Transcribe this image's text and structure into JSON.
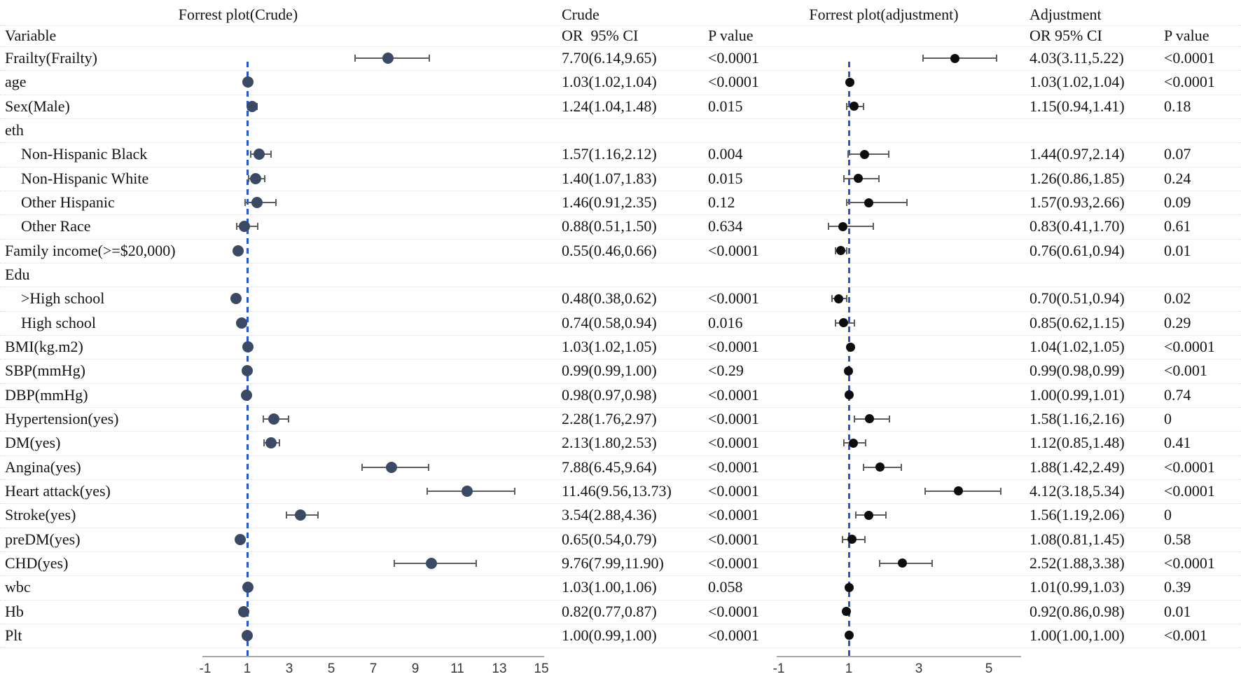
{
  "figure": {
    "left_plot_title": "Forrest plot(Crude)",
    "right_plot_title": "Forrest plot(adjustment)",
    "crude_group_label": "Crude",
    "adjust_group_label": "Adjustment",
    "variable_header": "Variable",
    "crude_or_header": "OR  95% CI",
    "crude_p_header": "P value",
    "adjust_or_header": "OR 95% CI",
    "adjust_p_header": "P value"
  },
  "colors": {
    "crude_marker": "#3b4a64",
    "adjust_marker": "#0d0d0d",
    "ci_line": "#5d5d5d",
    "reference_line": "#2456cf",
    "gridline": "#dcdcdc",
    "axis_line": "#a8a8a8",
    "text": "#141414"
  },
  "chart_data": {
    "type": "forest",
    "left_axis": {
      "ticks": [
        -1,
        1,
        3,
        5,
        7,
        9,
        11,
        13,
        15
      ],
      "reference_value": 1
    },
    "right_axis": {
      "ticks": [
        -1,
        1,
        3,
        5
      ],
      "reference_value": 1
    },
    "rows": [
      {
        "label": "Frailty(Frailty)",
        "indent": false,
        "crude": {
          "or": 7.7,
          "lo": 6.14,
          "hi": 9.65,
          "text": "7.70(6.14,9.65)",
          "p": "<0.0001"
        },
        "adj": {
          "or": 4.03,
          "lo": 3.11,
          "hi": 5.22,
          "text": "4.03(3.11,5.22)",
          "p": "<0.0001"
        }
      },
      {
        "label": "age",
        "indent": false,
        "crude": {
          "or": 1.03,
          "lo": 1.02,
          "hi": 1.04,
          "text": "1.03(1.02,1.04)",
          "p": "<0.0001"
        },
        "adj": {
          "or": 1.03,
          "lo": 1.02,
          "hi": 1.04,
          "text": "1.03(1.02,1.04)",
          "p": "<0.0001"
        }
      },
      {
        "label": "Sex(Male)",
        "indent": false,
        "crude": {
          "or": 1.24,
          "lo": 1.04,
          "hi": 1.48,
          "text": "1.24(1.04,1.48)",
          "p": "0.015"
        },
        "adj": {
          "or": 1.15,
          "lo": 0.94,
          "hi": 1.41,
          "text": "1.15(0.94,1.41)",
          "p": "0.18"
        }
      },
      {
        "label": "eth",
        "indent": false,
        "crude": null,
        "adj": null
      },
      {
        "label": "Non-Hispanic Black",
        "indent": true,
        "crude": {
          "or": 1.57,
          "lo": 1.16,
          "hi": 2.12,
          "text": "1.57(1.16,2.12)",
          "p": "0.004"
        },
        "adj": {
          "or": 1.44,
          "lo": 0.97,
          "hi": 2.14,
          "text": "1.44(0.97,2.14)",
          "p": "0.07"
        }
      },
      {
        "label": "Non-Hispanic White",
        "indent": true,
        "crude": {
          "or": 1.4,
          "lo": 1.07,
          "hi": 1.83,
          "text": "1.40(1.07,1.83)",
          "p": "0.015"
        },
        "adj": {
          "or": 1.26,
          "lo": 0.86,
          "hi": 1.85,
          "text": "1.26(0.86,1.85)",
          "p": "0.24"
        }
      },
      {
        "label": "Other Hispanic",
        "indent": true,
        "crude": {
          "or": 1.46,
          "lo": 0.91,
          "hi": 2.35,
          "text": "1.46(0.91,2.35)",
          "p": "0.12"
        },
        "adj": {
          "or": 1.57,
          "lo": 0.93,
          "hi": 2.66,
          "text": "1.57(0.93,2.66)",
          "p": "0.09"
        }
      },
      {
        "label": "Other Race",
        "indent": true,
        "crude": {
          "or": 0.88,
          "lo": 0.51,
          "hi": 1.5,
          "text": "0.88(0.51,1.50)",
          "p": "0.634"
        },
        "adj": {
          "or": 0.83,
          "lo": 0.41,
          "hi": 1.7,
          "text": "0.83(0.41,1.70)",
          "p": "0.61"
        }
      },
      {
        "label": "Family income(>=$20,000)",
        "indent": false,
        "crude": {
          "or": 0.55,
          "lo": 0.46,
          "hi": 0.66,
          "text": "0.55(0.46,0.66)",
          "p": "<0.0001"
        },
        "adj": {
          "or": 0.76,
          "lo": 0.61,
          "hi": 0.94,
          "text": "0.76(0.61,0.94)",
          "p": "0.01"
        }
      },
      {
        "label": "Edu",
        "indent": false,
        "crude": null,
        "adj": null
      },
      {
        "label": ">High school",
        "indent": true,
        "crude": {
          "or": 0.48,
          "lo": 0.38,
          "hi": 0.62,
          "text": "0.48(0.38,0.62)",
          "p": "<0.0001"
        },
        "adj": {
          "or": 0.7,
          "lo": 0.51,
          "hi": 0.94,
          "text": "0.70(0.51,0.94)",
          "p": "0.02"
        }
      },
      {
        "label": "High school",
        "indent": true,
        "crude": {
          "or": 0.74,
          "lo": 0.58,
          "hi": 0.94,
          "text": "0.74(0.58,0.94)",
          "p": "0.016"
        },
        "adj": {
          "or": 0.85,
          "lo": 0.62,
          "hi": 1.15,
          "text": "0.85(0.62,1.15)",
          "p": "0.29"
        }
      },
      {
        "label": "BMI(kg.m2)",
        "indent": false,
        "crude": {
          "or": 1.03,
          "lo": 1.02,
          "hi": 1.05,
          "text": "1.03(1.02,1.05)",
          "p": "<0.0001"
        },
        "adj": {
          "or": 1.04,
          "lo": 1.02,
          "hi": 1.05,
          "text": "1.04(1.02,1.05)",
          "p": "<0.0001"
        }
      },
      {
        "label": "SBP(mmHg)",
        "indent": false,
        "crude": {
          "or": 0.99,
          "lo": 0.99,
          "hi": 1.0,
          "text": "0.99(0.99,1.00)",
          "p": "<0.29"
        },
        "adj": {
          "or": 0.99,
          "lo": 0.98,
          "hi": 0.99,
          "text": "0.99(0.98,0.99)",
          "p": "<0.001"
        }
      },
      {
        "label": "DBP(mmHg)",
        "indent": false,
        "crude": {
          "or": 0.98,
          "lo": 0.97,
          "hi": 0.98,
          "text": "0.98(0.97,0.98)",
          "p": "<0.0001"
        },
        "adj": {
          "or": 1.0,
          "lo": 0.99,
          "hi": 1.01,
          "text": "1.00(0.99,1.01)",
          "p": "0.74"
        }
      },
      {
        "label": "Hypertension(yes)",
        "indent": false,
        "crude": {
          "or": 2.28,
          "lo": 1.76,
          "hi": 2.97,
          "text": "2.28(1.76,2.97)",
          "p": "<0.0001"
        },
        "adj": {
          "or": 1.58,
          "lo": 1.16,
          "hi": 2.16,
          "text": "1.58(1.16,2.16)",
          "p": "0"
        }
      },
      {
        "label": "DM(yes)",
        "indent": false,
        "crude": {
          "or": 2.13,
          "lo": 1.8,
          "hi": 2.53,
          "text": "2.13(1.80,2.53)",
          "p": "<0.0001"
        },
        "adj": {
          "or": 1.12,
          "lo": 0.85,
          "hi": 1.48,
          "text": "1.12(0.85,1.48)",
          "p": "0.41"
        }
      },
      {
        "label": "Angina(yes)",
        "indent": false,
        "crude": {
          "or": 7.88,
          "lo": 6.45,
          "hi": 9.64,
          "text": "7.88(6.45,9.64)",
          "p": "<0.0001"
        },
        "adj": {
          "or": 1.88,
          "lo": 1.42,
          "hi": 2.49,
          "text": "1.88(1.42,2.49)",
          "p": "<0.0001"
        }
      },
      {
        "label": "Heart attack(yes)",
        "indent": false,
        "crude": {
          "or": 11.46,
          "lo": 9.56,
          "hi": 13.73,
          "text": "11.46(9.56,13.73)",
          "p": "<0.0001"
        },
        "adj": {
          "or": 4.12,
          "lo": 3.18,
          "hi": 5.34,
          "text": "4.12(3.18,5.34)",
          "p": "<0.0001"
        }
      },
      {
        "label": "Stroke(yes)",
        "indent": false,
        "crude": {
          "or": 3.54,
          "lo": 2.88,
          "hi": 4.36,
          "text": "3.54(2.88,4.36)",
          "p": "<0.0001"
        },
        "adj": {
          "or": 1.56,
          "lo": 1.19,
          "hi": 2.06,
          "text": "1.56(1.19,2.06)",
          "p": "0"
        }
      },
      {
        "label": "preDM(yes)",
        "indent": false,
        "crude": {
          "or": 0.65,
          "lo": 0.54,
          "hi": 0.79,
          "text": "0.65(0.54,0.79)",
          "p": "<0.0001"
        },
        "adj": {
          "or": 1.08,
          "lo": 0.81,
          "hi": 1.45,
          "text": "1.08(0.81,1.45)",
          "p": "0.58"
        }
      },
      {
        "label": "CHD(yes)",
        "indent": false,
        "crude": {
          "or": 9.76,
          "lo": 7.99,
          "hi": 11.9,
          "text": "9.76(7.99,11.90)",
          "p": "<0.0001"
        },
        "adj": {
          "or": 2.52,
          "lo": 1.88,
          "hi": 3.38,
          "text": "2.52(1.88,3.38)",
          "p": "<0.0001"
        }
      },
      {
        "label": "wbc",
        "indent": false,
        "crude": {
          "or": 1.03,
          "lo": 1.0,
          "hi": 1.06,
          "text": "1.03(1.00,1.06)",
          "p": "0.058"
        },
        "adj": {
          "or": 1.01,
          "lo": 0.99,
          "hi": 1.03,
          "text": "1.01(0.99,1.03)",
          "p": "0.39"
        }
      },
      {
        "label": "Hb",
        "indent": false,
        "crude": {
          "or": 0.82,
          "lo": 0.77,
          "hi": 0.87,
          "text": "0.82(0.77,0.87)",
          "p": "<0.0001"
        },
        "adj": {
          "or": 0.92,
          "lo": 0.86,
          "hi": 0.98,
          "text": "0.92(0.86,0.98)",
          "p": "0.01"
        }
      },
      {
        "label": "Plt",
        "indent": false,
        "crude": {
          "or": 1.0,
          "lo": 0.99,
          "hi": 1.0,
          "text": "1.00(0.99,1.00)",
          "p": "<0.0001"
        },
        "adj": {
          "or": 1.0,
          "lo": 1.0,
          "hi": 1.0,
          "text": "1.00(1.00,1.00)",
          "p": "<0.001"
        }
      }
    ]
  }
}
